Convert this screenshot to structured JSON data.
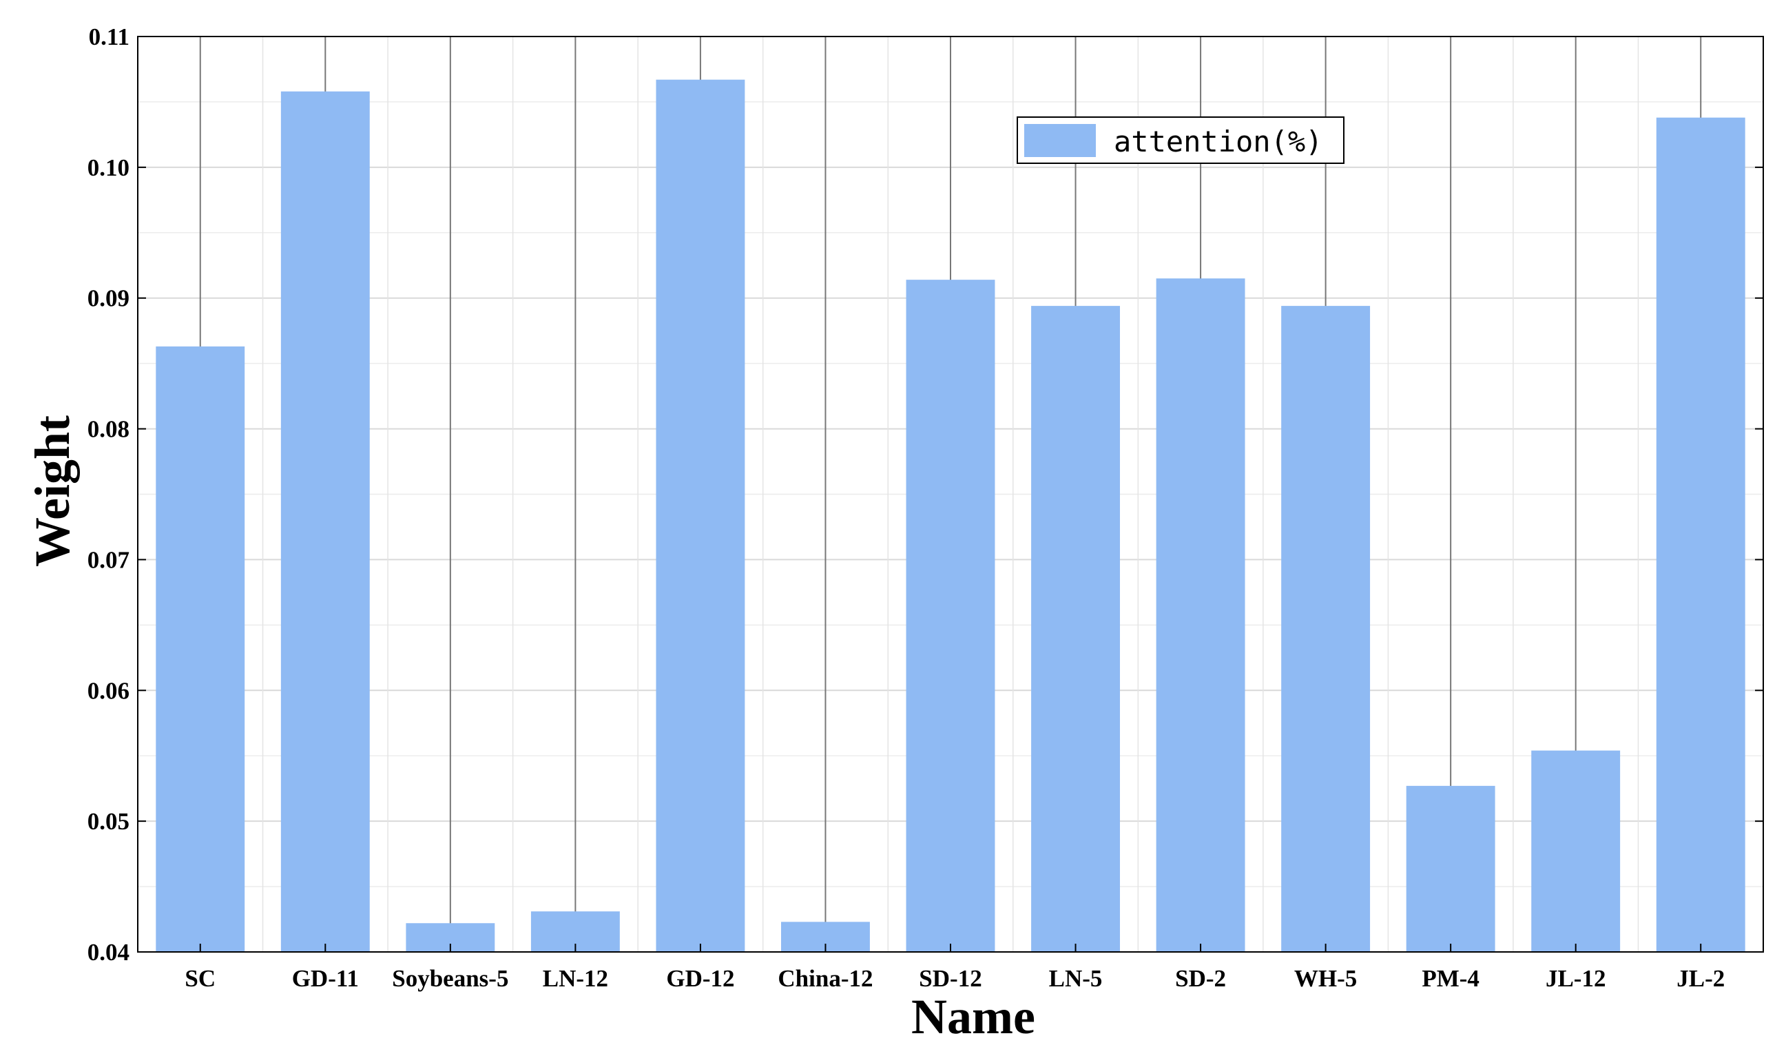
{
  "chart_data": {
    "type": "bar",
    "categories": [
      "SC",
      "GD-11",
      "Soybeans-5",
      "LN-12",
      "GD-12",
      "China-12",
      "SD-12",
      "LN-5",
      "SD-2",
      "WH-5",
      "PM-4",
      "JL-12",
      "JL-2"
    ],
    "series": [
      {
        "name": "attention(%)",
        "values": [
          0.0863,
          0.1058,
          0.0422,
          0.0431,
          0.1067,
          0.0423,
          0.0914,
          0.0894,
          0.0915,
          0.0894,
          0.0527,
          0.0554,
          0.1038
        ]
      }
    ],
    "xlabel": "Name",
    "ylabel": "Weight",
    "ylim": [
      0.04,
      0.11
    ],
    "yticks": [
      "0.04",
      "0.05",
      "0.06",
      "0.07",
      "0.08",
      "0.09",
      "0.10",
      "0.11"
    ],
    "grid": true,
    "legend_position": "top-right",
    "colors": {
      "bar": "#8fbaf3",
      "grid": "#d9d9d9",
      "axis": "#000000",
      "category_line": "#777777"
    }
  }
}
